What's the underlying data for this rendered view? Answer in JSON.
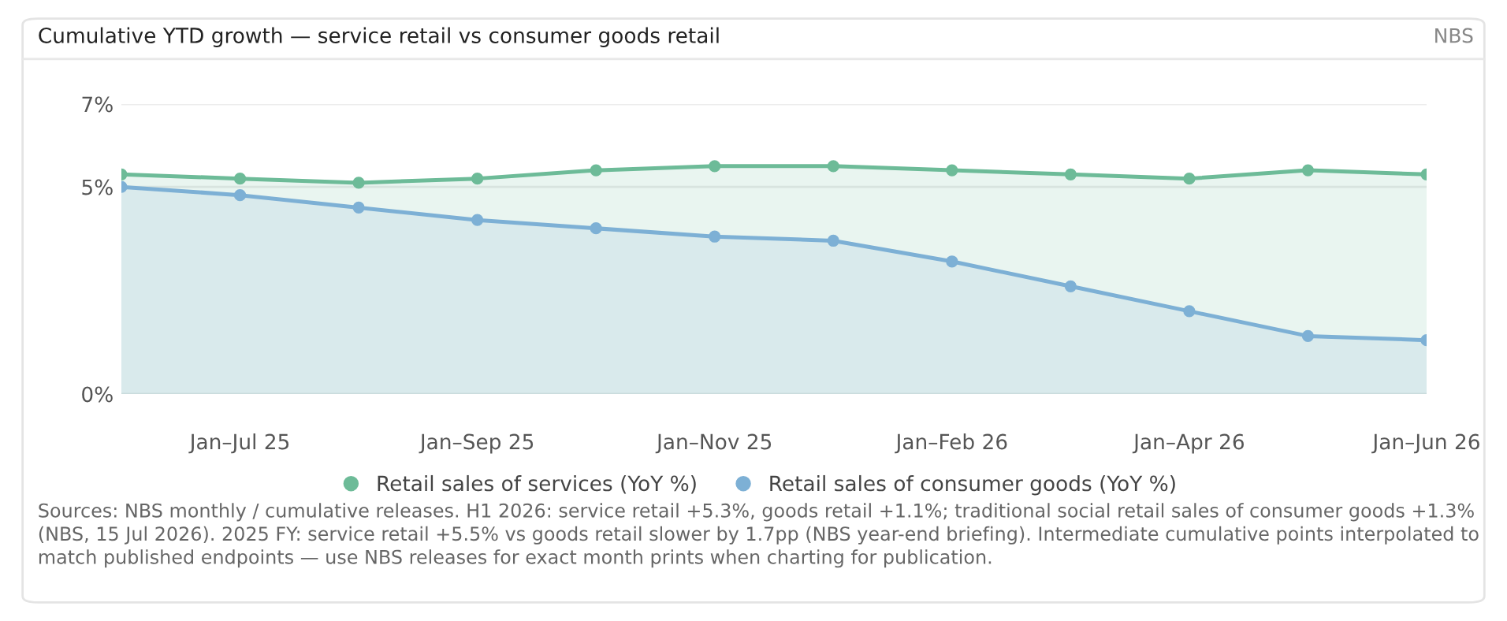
{
  "chart_data": {
    "type": "area",
    "title": "Cumulative YTD growth — service retail vs consumer goods retail",
    "subtitle": "NBS",
    "categories": [
      null,
      "Jan–Jul 25",
      null,
      "Jan–Sep 25",
      null,
      "Jan–Nov 25",
      null,
      "Jan–Feb 26",
      null,
      "Jan–Apr 26",
      null,
      "Jan–Jun 26"
    ],
    "series": [
      {
        "name": "Retail sales of services (YoY %)",
        "color": "#6dbb98",
        "values": [
          5.3,
          5.2,
          5.1,
          5.2,
          5.4,
          5.5,
          5.5,
          5.4,
          5.3,
          5.2,
          5.4,
          5.3
        ]
      },
      {
        "name": "Retail sales of consumer goods (YoY %)",
        "color": "#7db0d5",
        "values": [
          5.0,
          4.8,
          4.5,
          4.2,
          4.0,
          3.8,
          3.7,
          3.2,
          2.6,
          2.0,
          1.4,
          1.3
        ]
      }
    ],
    "ylim": [
      0,
      7
    ],
    "yticks": [
      {
        "value": 0,
        "label": "0%"
      },
      {
        "value": 5,
        "label": "5%"
      },
      {
        "value": 7,
        "label": "7%"
      }
    ],
    "grid": "y",
    "legend": "bottom",
    "marker": "circle",
    "line_style": "solid",
    "annotations": [
      "Sources: NBS monthly / cumulative releases. H1 2026: service retail +5.3%, goods retail +1.1%; traditional social retail sales of consumer goods +1.3% (NBS, 15 Jul 2026). 2025 FY: service retail +5.5% vs goods retail slower by 1.7pp (NBS year-end briefing). Intermediate cumulative points interpolated to match published endpoints — use NBS releases for exact month prints when charting for publication."
    ]
  }
}
